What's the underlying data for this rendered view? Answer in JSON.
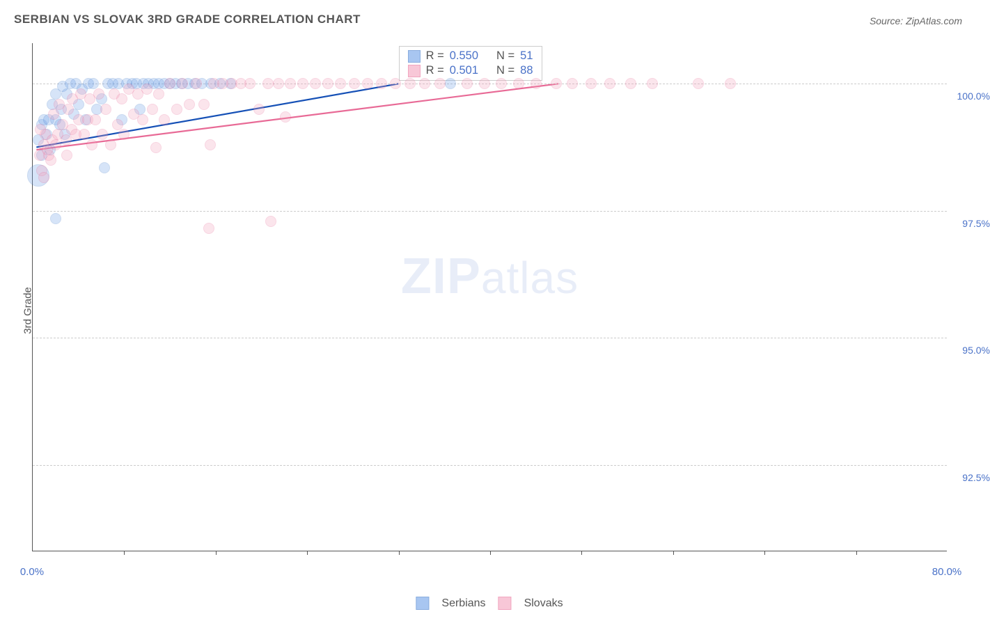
{
  "title": "SERBIAN VS SLOVAK 3RD GRADE CORRELATION CHART",
  "source_label": "Source: ZipAtlas.com",
  "ylabel": "3rd Grade",
  "watermark_bold": "ZIP",
  "watermark_light": "atlas",
  "chart": {
    "type": "scatter",
    "xlim": [
      0,
      80
    ],
    "ylim": [
      90.8,
      100.8
    ],
    "x_ticks_minor": [
      8,
      16,
      24,
      32,
      40,
      48,
      56,
      64,
      72
    ],
    "x_ticks_labeled": [
      {
        "v": 0,
        "lbl": "0.0%"
      },
      {
        "v": 80,
        "lbl": "80.0%"
      }
    ],
    "y_gridlines": [
      {
        "v": 92.5,
        "lbl": "92.5%"
      },
      {
        "v": 95.0,
        "lbl": "95.0%"
      },
      {
        "v": 97.5,
        "lbl": "97.5%"
      },
      {
        "v": 100.0,
        "lbl": "100.0%"
      }
    ],
    "grid_color": "#cccccc",
    "axis_color": "#555555",
    "tick_label_color": "#4a72c8",
    "background_color": "#ffffff",
    "dot_base_radius": 8,
    "dot_opacity": 0.28,
    "series": [
      {
        "name": "Serbians",
        "label": "Serbians",
        "fill": "#6fa1e8",
        "stroke": "#3e78c9",
        "R": "0.550",
        "N": "51",
        "trend": {
          "x1": 0.3,
          "y1": 98.75,
          "x2": 32,
          "y2": 100.0,
          "width": 2.2,
          "color": "#1550b6"
        },
        "points": [
          {
            "x": 0.5,
            "y": 98.2,
            "r": 16
          },
          {
            "x": 0.5,
            "y": 98.9
          },
          {
            "x": 0.8,
            "y": 99.2
          },
          {
            "x": 0.8,
            "y": 98.6
          },
          {
            "x": 1.0,
            "y": 99.3
          },
          {
            "x": 1.2,
            "y": 99.0
          },
          {
            "x": 1.4,
            "y": 99.3
          },
          {
            "x": 1.5,
            "y": 98.7
          },
          {
            "x": 1.7,
            "y": 99.6
          },
          {
            "x": 2.0,
            "y": 99.3
          },
          {
            "x": 2.0,
            "y": 99.8
          },
          {
            "x": 2.4,
            "y": 99.2
          },
          {
            "x": 2.5,
            "y": 99.5
          },
          {
            "x": 2.8,
            "y": 99.0
          },
          {
            "x": 3.0,
            "y": 99.8
          },
          {
            "x": 3.3,
            "y": 100.0
          },
          {
            "x": 3.6,
            "y": 99.4
          },
          {
            "x": 3.8,
            "y": 100.0
          },
          {
            "x": 4.0,
            "y": 99.6
          },
          {
            "x": 4.3,
            "y": 99.9
          },
          {
            "x": 4.6,
            "y": 99.3
          },
          {
            "x": 4.9,
            "y": 100.0
          },
          {
            "x": 5.3,
            "y": 100.0
          },
          {
            "x": 5.6,
            "y": 99.5
          },
          {
            "x": 6.0,
            "y": 99.7
          },
          {
            "x": 6.3,
            "y": 98.35
          },
          {
            "x": 6.6,
            "y": 100.0
          },
          {
            "x": 7.0,
            "y": 100.0
          },
          {
            "x": 7.5,
            "y": 100.0
          },
          {
            "x": 7.8,
            "y": 99.3
          },
          {
            "x": 8.2,
            "y": 100.0
          },
          {
            "x": 8.7,
            "y": 100.0
          },
          {
            "x": 9.1,
            "y": 100.0
          },
          {
            "x": 9.4,
            "y": 99.5
          },
          {
            "x": 9.7,
            "y": 100.0
          },
          {
            "x": 10.1,
            "y": 100.0
          },
          {
            "x": 10.6,
            "y": 100.0
          },
          {
            "x": 11.0,
            "y": 100.0
          },
          {
            "x": 11.5,
            "y": 100.0
          },
          {
            "x": 12.0,
            "y": 100.0
          },
          {
            "x": 12.5,
            "y": 100.0
          },
          {
            "x": 13.0,
            "y": 100.0
          },
          {
            "x": 13.6,
            "y": 100.0
          },
          {
            "x": 14.2,
            "y": 100.0
          },
          {
            "x": 14.8,
            "y": 100.0
          },
          {
            "x": 15.6,
            "y": 100.0
          },
          {
            "x": 16.4,
            "y": 100.0
          },
          {
            "x": 17.3,
            "y": 100.0
          },
          {
            "x": 36.5,
            "y": 100.0
          },
          {
            "x": 2.0,
            "y": 97.35
          },
          {
            "x": 2.6,
            "y": 99.95
          }
        ]
      },
      {
        "name": "Slovaks",
        "label": "Slovaks",
        "fill": "#f4a3bd",
        "stroke": "#e86a96",
        "R": "0.501",
        "N": "88",
        "trend": {
          "x1": 0.3,
          "y1": 98.7,
          "x2": 46,
          "y2": 100.0,
          "width": 2.2,
          "color": "#e86a96"
        },
        "points": [
          {
            "x": 0.6,
            "y": 98.6
          },
          {
            "x": 0.8,
            "y": 98.3
          },
          {
            "x": 1.0,
            "y": 98.8
          },
          {
            "x": 1.1,
            "y": 99.0
          },
          {
            "x": 1.4,
            "y": 98.6
          },
          {
            "x": 1.7,
            "y": 98.9
          },
          {
            "x": 1.8,
            "y": 99.4
          },
          {
            "x": 2.0,
            "y": 98.8
          },
          {
            "x": 2.2,
            "y": 99.0
          },
          {
            "x": 2.3,
            "y": 99.6
          },
          {
            "x": 2.6,
            "y": 99.2
          },
          {
            "x": 2.9,
            "y": 98.9
          },
          {
            "x": 3.1,
            "y": 99.5
          },
          {
            "x": 3.4,
            "y": 99.1
          },
          {
            "x": 3.5,
            "y": 99.7
          },
          {
            "x": 3.8,
            "y": 99.0
          },
          {
            "x": 4.0,
            "y": 99.3
          },
          {
            "x": 4.2,
            "y": 99.8
          },
          {
            "x": 4.5,
            "y": 99.0
          },
          {
            "x": 4.8,
            "y": 99.3
          },
          {
            "x": 5.0,
            "y": 99.7
          },
          {
            "x": 5.2,
            "y": 98.8
          },
          {
            "x": 5.5,
            "y": 99.3
          },
          {
            "x": 5.8,
            "y": 99.8
          },
          {
            "x": 6.1,
            "y": 99.0
          },
          {
            "x": 6.4,
            "y": 99.5
          },
          {
            "x": 6.8,
            "y": 98.8
          },
          {
            "x": 7.1,
            "y": 99.8
          },
          {
            "x": 7.4,
            "y": 99.2
          },
          {
            "x": 7.8,
            "y": 99.7
          },
          {
            "x": 8.0,
            "y": 99.0
          },
          {
            "x": 8.4,
            "y": 99.9
          },
          {
            "x": 8.8,
            "y": 99.4
          },
          {
            "x": 9.2,
            "y": 99.8
          },
          {
            "x": 9.6,
            "y": 99.3
          },
          {
            "x": 10.0,
            "y": 99.9
          },
          {
            "x": 10.5,
            "y": 99.5
          },
          {
            "x": 11.0,
            "y": 99.8
          },
          {
            "x": 11.5,
            "y": 99.3
          },
          {
            "x": 12.0,
            "y": 100.0
          },
          {
            "x": 12.6,
            "y": 99.5
          },
          {
            "x": 13.1,
            "y": 100.0
          },
          {
            "x": 13.7,
            "y": 99.6
          },
          {
            "x": 14.3,
            "y": 100.0
          },
          {
            "x": 15.0,
            "y": 99.6
          },
          {
            "x": 15.5,
            "y": 98.8
          },
          {
            "x": 15.8,
            "y": 100.0
          },
          {
            "x": 16.6,
            "y": 100.0
          },
          {
            "x": 17.4,
            "y": 100.0
          },
          {
            "x": 18.2,
            "y": 100.0
          },
          {
            "x": 19.0,
            "y": 100.0
          },
          {
            "x": 19.8,
            "y": 99.5
          },
          {
            "x": 20.6,
            "y": 100.0
          },
          {
            "x": 21.5,
            "y": 100.0
          },
          {
            "x": 22.1,
            "y": 99.35
          },
          {
            "x": 22.5,
            "y": 100.0
          },
          {
            "x": 23.6,
            "y": 100.0
          },
          {
            "x": 24.7,
            "y": 100.0
          },
          {
            "x": 25.8,
            "y": 100.0
          },
          {
            "x": 26.9,
            "y": 100.0
          },
          {
            "x": 28.1,
            "y": 100.0
          },
          {
            "x": 29.3,
            "y": 100.0
          },
          {
            "x": 30.5,
            "y": 100.0
          },
          {
            "x": 31.7,
            "y": 100.0
          },
          {
            "x": 33.0,
            "y": 100.0
          },
          {
            "x": 34.3,
            "y": 100.0
          },
          {
            "x": 35.6,
            "y": 100.0
          },
          {
            "x": 38.0,
            "y": 100.0
          },
          {
            "x": 39.5,
            "y": 100.0
          },
          {
            "x": 41.0,
            "y": 100.0
          },
          {
            "x": 42.5,
            "y": 100.0
          },
          {
            "x": 44.0,
            "y": 100.0
          },
          {
            "x": 45.8,
            "y": 100.0
          },
          {
            "x": 47.2,
            "y": 100.0
          },
          {
            "x": 48.8,
            "y": 100.0
          },
          {
            "x": 50.5,
            "y": 100.0
          },
          {
            "x": 52.3,
            "y": 100.0
          },
          {
            "x": 54.2,
            "y": 100.0
          },
          {
            "x": 58.2,
            "y": 100.0
          },
          {
            "x": 61.0,
            "y": 100.0
          },
          {
            "x": 15.4,
            "y": 97.15
          },
          {
            "x": 20.8,
            "y": 97.3
          },
          {
            "x": 10.8,
            "y": 98.75
          },
          {
            "x": 1.0,
            "y": 98.15
          },
          {
            "x": 1.3,
            "y": 98.7
          },
          {
            "x": 0.7,
            "y": 99.1
          },
          {
            "x": 1.6,
            "y": 98.5
          },
          {
            "x": 3.0,
            "y": 98.6
          }
        ]
      }
    ]
  },
  "stats_legend": {
    "R_label": "R =",
    "N_label": "N ="
  },
  "bottom_legend": [
    "Serbians",
    "Slovaks"
  ]
}
